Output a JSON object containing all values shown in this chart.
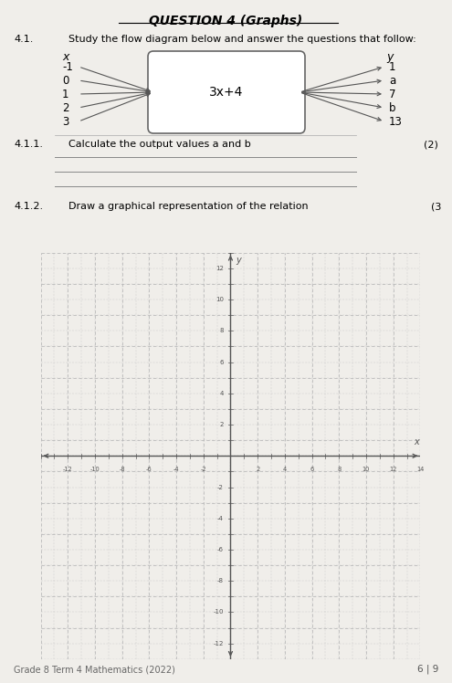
{
  "title": "QUESTION 4 (Graphs)",
  "q41_text": "Study the flow diagram below and answer the questions that follow:",
  "q41_num": "4.1.",
  "x_label": "x",
  "y_label": "y",
  "x_values": [
    "-1",
    "0",
    "1",
    "2",
    "3"
  ],
  "y_values": [
    "1",
    "a",
    "7",
    "b",
    "13"
  ],
  "box_formula": "3x+4",
  "q411_label": "4.1.1.",
  "q411_text": "Calculate the output values a and b",
  "q412_label": "4.1.2.",
  "q412_text": "Draw a graphical representation of the relation",
  "q411_mark": "(2)",
  "q412_mark": "(3",
  "footer": "Grade 8 Term 4 Mathematics (2022)",
  "page": "6 | 9",
  "bg_color": "#f0eeea",
  "grid_color": "#c8c8c8",
  "axis_color": "#555555",
  "graph_xlim": [
    -14,
    14
  ],
  "graph_ylim": [
    -13,
    13
  ]
}
